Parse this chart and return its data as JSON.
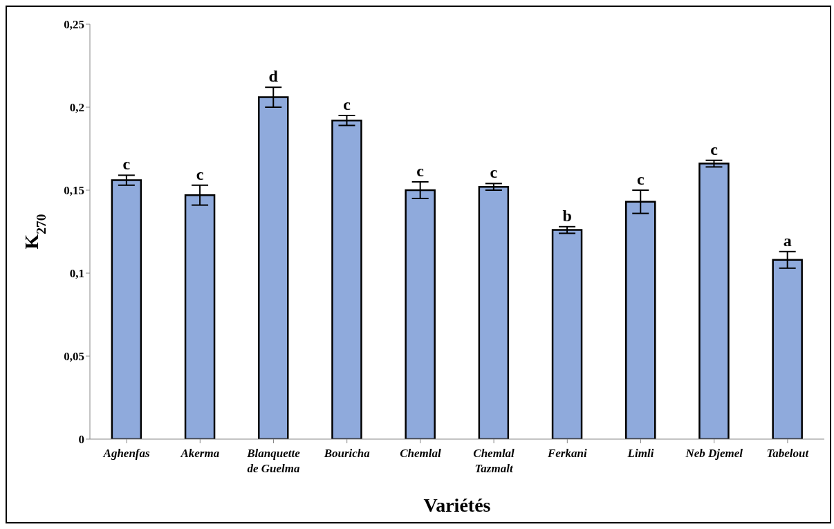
{
  "chart_data": {
    "type": "bar",
    "xlabel": "Variétés",
    "ylabel": "K$_{270}$",
    "categories": [
      "Aghenfas",
      "Akerma",
      "Blanquette de Guelma",
      "Bouricha",
      "Chemlal",
      "Chemlal Tazmalt",
      "Ferkani",
      "Limli",
      "Neb Djemel",
      "Tabelout"
    ],
    "values": [
      0.156,
      0.147,
      0.206,
      0.192,
      0.15,
      0.152,
      0.126,
      0.143,
      0.166,
      0.108
    ],
    "errors": [
      0.003,
      0.006,
      0.006,
      0.003,
      0.005,
      0.002,
      0.002,
      0.007,
      0.002,
      0.005
    ],
    "value_labels": [
      "c",
      "c",
      "d",
      "c",
      "c",
      "c",
      "b",
      "c",
      "c",
      "a"
    ],
    "color": "#8faadc",
    "ylim": [
      0,
      0.25
    ],
    "yticks": [
      {
        "value": 0,
        "label": "0"
      },
      {
        "value": 0.05,
        "label": "0,05"
      },
      {
        "value": 0.1,
        "label": "0,1"
      },
      {
        "value": 0.15,
        "label": "0,15"
      },
      {
        "value": 0.2,
        "label": "0,2"
      },
      {
        "value": 0.25,
        "label": "0,25"
      }
    ],
    "grid": false,
    "legend": false
  }
}
